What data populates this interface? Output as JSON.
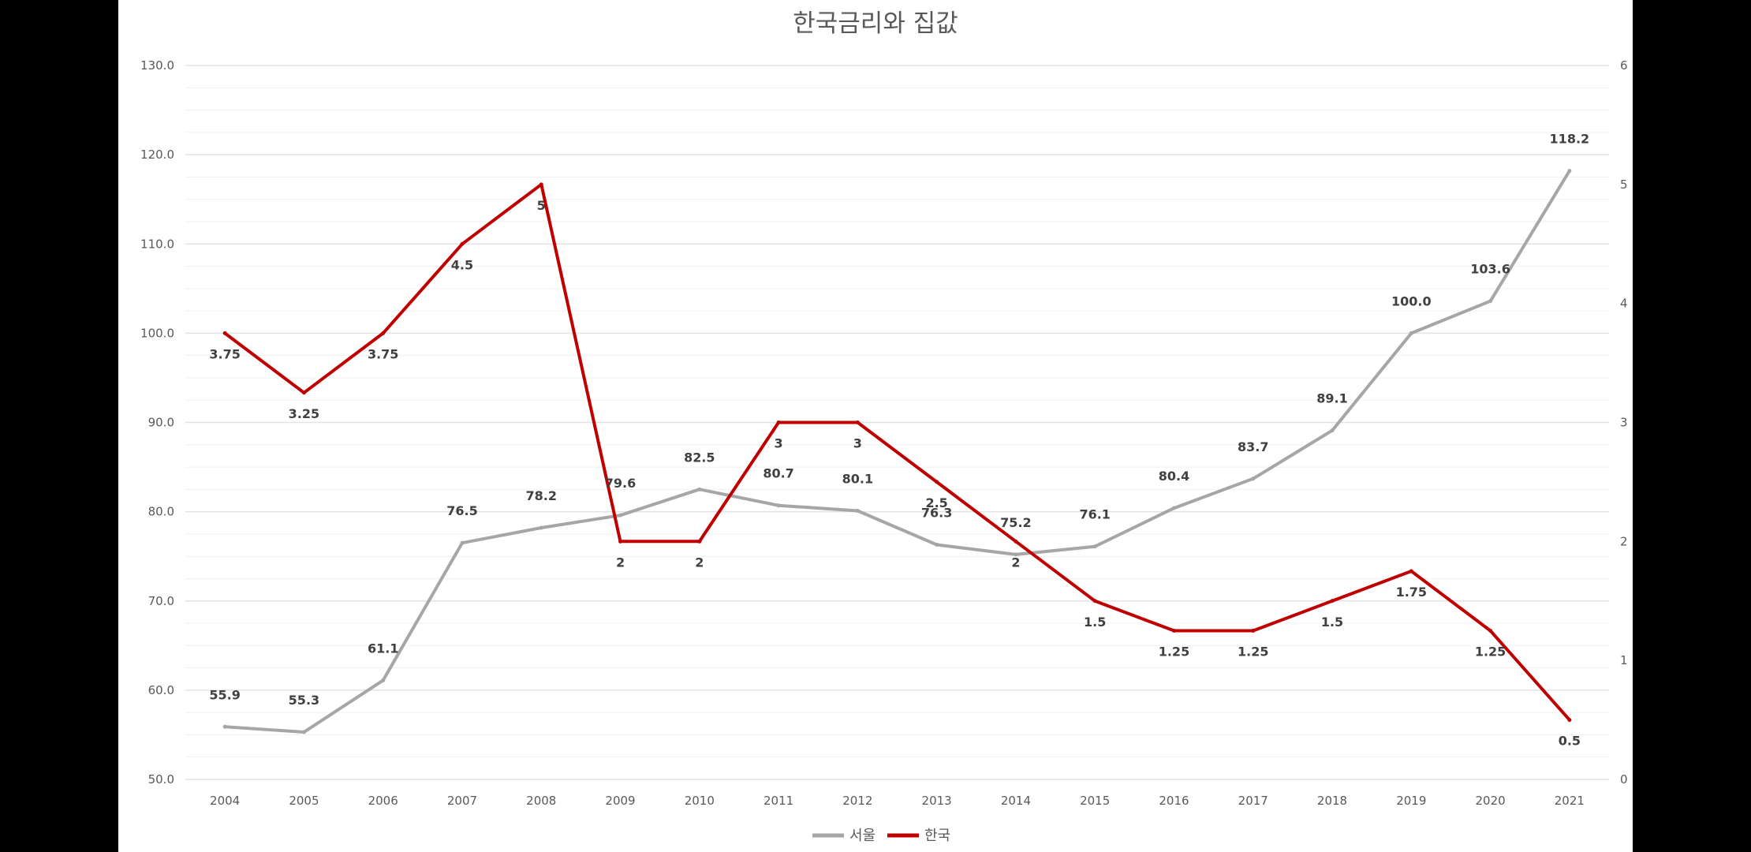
{
  "colors": {
    "background": "#000000",
    "panel": "#ffffff",
    "series_seoul": "#a6a6a6",
    "series_korea": "#c00000",
    "grid": "#e6e6e6"
  },
  "chart_data": {
    "type": "line",
    "title": "한국금리와 집값",
    "xlabel": "",
    "ylabel": "",
    "categories": [
      "2004",
      "2005",
      "2006",
      "2007",
      "2008",
      "2009",
      "2010",
      "2011",
      "2012",
      "2013",
      "2014",
      "2015",
      "2016",
      "2017",
      "2018",
      "2019",
      "2020",
      "2021"
    ],
    "ylim": [
      50,
      130
    ],
    "y2lim": [
      0,
      6
    ],
    "y_ticks": [
      "50.0",
      "60.0",
      "70.0",
      "80.0",
      "90.0",
      "100.0",
      "110.0",
      "120.0",
      "130.0"
    ],
    "y2_ticks": [
      "0",
      "1",
      "2",
      "3",
      "4",
      "5",
      "6"
    ],
    "grid": true,
    "legend_position": "bottom",
    "series": [
      {
        "name": "서울",
        "axis": "left",
        "values": [
          55.9,
          55.3,
          61.1,
          76.5,
          78.2,
          79.6,
          82.5,
          80.7,
          80.1,
          76.3,
          75.2,
          76.1,
          80.4,
          83.7,
          89.1,
          100.0,
          103.6,
          118.2
        ],
        "labels": [
          "55.9",
          "55.3",
          "61.1",
          "76.5",
          "78.2",
          "79.6",
          "82.5",
          "80.7",
          "80.1",
          "76.3",
          "75.2",
          "76.1",
          "80.4",
          "83.7",
          "89.1",
          "100.0",
          "103.6",
          "118.2"
        ]
      },
      {
        "name": "한국",
        "axis": "right",
        "values": [
          3.75,
          3.25,
          3.75,
          4.5,
          5,
          2,
          2,
          3,
          3,
          2.5,
          2,
          1.5,
          1.25,
          1.25,
          1.5,
          1.75,
          1.25,
          0.5
        ],
        "labels": [
          "3.75",
          "3.25",
          "3.75",
          "4.5",
          "5",
          "2",
          "2",
          "3",
          "3",
          "2.5",
          "2",
          "1.5",
          "1.25",
          "1.25",
          "1.5",
          "1.75",
          "1.25",
          "0.5"
        ]
      }
    ]
  }
}
